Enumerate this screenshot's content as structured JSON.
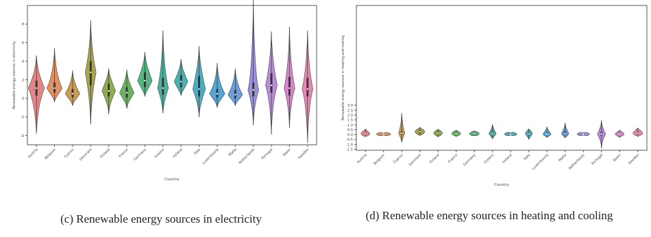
{
  "chart_data": [
    {
      "type": "violin",
      "panel_id": "c",
      "caption": "(c) Renewable energy sources in electricity",
      "xlabel": "Country",
      "ylabel": "Renewable energy sources in electricity",
      "ylim": [
        -5,
        10
      ],
      "yticks": [
        -4,
        -2,
        0,
        2,
        4,
        6,
        8
      ],
      "grid": false,
      "categories": [
        "Austria",
        "Belgium",
        "Cyprus",
        "Denmark",
        "Finland",
        "France",
        "Germany",
        "Greece",
        "Ireland",
        "Italy",
        "Luxembourg",
        "Malta",
        "Netherlands",
        "Portugal",
        "Spain",
        "Sweden"
      ],
      "series": [
        {
          "category": "Austria",
          "color": "#e0787a",
          "min": -3.8,
          "q1": 0.3,
          "median": 1.1,
          "q3": 1.9,
          "max": 4.6,
          "width": 0.9
        },
        {
          "category": "Belgium",
          "color": "#dd8452",
          "min": -0.4,
          "q1": 0.6,
          "median": 1.1,
          "q3": 1.7,
          "max": 5.4,
          "width": 0.85
        },
        {
          "category": "Cyprus",
          "color": "#c7923e",
          "min": -0.8,
          "q1": 0.1,
          "median": 0.5,
          "q3": 1.0,
          "max": 3.0,
          "width": 0.8
        },
        {
          "category": "Denmark",
          "color": "#a09a3a",
          "min": -2.8,
          "q1": 1.4,
          "median": 2.8,
          "q3": 4.0,
          "max": 8.4,
          "width": 0.6
        },
        {
          "category": "Finland",
          "color": "#84a43a",
          "min": -1.7,
          "q1": 0.2,
          "median": 0.8,
          "q3": 1.6,
          "max": 3.2,
          "width": 0.75
        },
        {
          "category": "France",
          "color": "#5aac50",
          "min": -1.1,
          "q1": 0.1,
          "median": 0.6,
          "q3": 1.2,
          "max": 3.1,
          "width": 0.8
        },
        {
          "category": "Germany",
          "color": "#3fae71",
          "min": 0.2,
          "q1": 1.2,
          "median": 1.9,
          "q3": 2.8,
          "max": 5.0,
          "width": 0.8
        },
        {
          "category": "Greece",
          "color": "#3aaa92",
          "min": -1.6,
          "q1": 0.4,
          "median": 1.1,
          "q3": 2.2,
          "max": 7.3,
          "width": 0.6
        },
        {
          "category": "Ireland",
          "color": "#39a8a9",
          "min": 0.3,
          "q1": 1.2,
          "median": 1.8,
          "q3": 2.5,
          "max": 4.2,
          "width": 0.75
        },
        {
          "category": "Italy",
          "color": "#3aa5bd",
          "min": -2.0,
          "q1": 0.2,
          "median": 1.0,
          "q3": 2.4,
          "max": 5.6,
          "width": 0.7
        },
        {
          "category": "Luxembourg",
          "color": "#3f9fd0",
          "min": -1.0,
          "q1": 0.1,
          "median": 0.5,
          "q3": 1.0,
          "max": 3.8,
          "width": 0.85
        },
        {
          "category": "Malta",
          "color": "#5a93d8",
          "min": -0.8,
          "q1": 0.0,
          "median": 0.4,
          "q3": 0.9,
          "max": 3.2,
          "width": 0.8
        },
        {
          "category": "Netherlands",
          "color": "#8d86d6",
          "min": -2.9,
          "q1": 0.2,
          "median": 0.9,
          "q3": 1.7,
          "max": 10.7,
          "width": 0.6
        },
        {
          "category": "Portugal",
          "color": "#b07fd4",
          "min": -3.9,
          "q1": 0.6,
          "median": 1.4,
          "q3": 2.7,
          "max": 7.2,
          "width": 0.65
        },
        {
          "category": "Spain",
          "color": "#d278c4",
          "min": -3.2,
          "q1": 0.3,
          "median": 1.1,
          "q3": 2.3,
          "max": 7.7,
          "width": 0.6
        },
        {
          "category": "Sweden",
          "color": "#e27aa5",
          "min": -4.8,
          "q1": 0.2,
          "median": 1.0,
          "q3": 2.2,
          "max": 7.3,
          "width": 0.6
        }
      ]
    },
    {
      "type": "violin",
      "panel_id": "d",
      "caption": "(d) Renewable energy sources in heating and cooling",
      "xlabel": "Country",
      "ylabel": "Renewable energy sources in heating and cooling",
      "ylim": [
        -1.6,
        13.2
      ],
      "yticks": [
        -1.5,
        -1.0,
        -0.5,
        0.0,
        0.5,
        1.0,
        1.5,
        2.0,
        2.5,
        3.0
      ],
      "ytick_labels": [
        "-1.5",
        "-1.0",
        "-0.5",
        "0.0",
        "0.5",
        "1.0",
        "1.5",
        "2.0",
        "2.5",
        "3.0"
      ],
      "grid": false,
      "categories": [
        "Austria",
        "Belgium",
        "Cyprus",
        "Denmark",
        "Finland",
        "France",
        "Germany",
        "Greece",
        "Ireland",
        "Italy",
        "Luxembourg",
        "Malta",
        "Netherlands",
        "Portugal",
        "Spain",
        "Sweden"
      ],
      "series": [
        {
          "category": "Austria",
          "color": "#e0787a",
          "min": -0.2,
          "q1": 0.0,
          "median": 0.1,
          "q3": 0.2,
          "max": 0.6,
          "width": 0.5
        },
        {
          "category": "Belgium",
          "color": "#dd8452",
          "min": -0.05,
          "q1": 0.0,
          "median": 0.05,
          "q3": 0.1,
          "max": 0.15,
          "width": 0.8
        },
        {
          "category": "Cyprus",
          "color": "#c7923e",
          "min": -0.8,
          "q1": 0.0,
          "median": 0.15,
          "q3": 0.35,
          "max": 2.2,
          "width": 0.35
        },
        {
          "category": "Denmark",
          "color": "#a09a3a",
          "min": -0.1,
          "q1": 0.15,
          "median": 0.3,
          "q3": 0.45,
          "max": 0.75,
          "width": 0.55
        },
        {
          "category": "Finland",
          "color": "#84a43a",
          "min": -0.25,
          "q1": 0.05,
          "median": 0.15,
          "q3": 0.3,
          "max": 0.55,
          "width": 0.5
        },
        {
          "category": "France",
          "color": "#5aac50",
          "min": -0.2,
          "q1": 0.05,
          "median": 0.1,
          "q3": 0.2,
          "max": 0.45,
          "width": 0.5
        },
        {
          "category": "Germany",
          "color": "#3fae71",
          "min": -0.1,
          "q1": 0.0,
          "median": 0.1,
          "q3": 0.15,
          "max": 0.4,
          "width": 0.55
        },
        {
          "category": "Greece",
          "color": "#3aaa92",
          "min": -0.45,
          "q1": 0.0,
          "median": 0.1,
          "q3": 0.25,
          "max": 1.05,
          "width": 0.4
        },
        {
          "category": "Ireland",
          "color": "#39a8a9",
          "min": -0.05,
          "q1": 0.0,
          "median": 0.05,
          "q3": 0.1,
          "max": 0.2,
          "width": 0.7
        },
        {
          "category": "Italy",
          "color": "#3aa5bd",
          "min": -0.5,
          "q1": 0.0,
          "median": 0.1,
          "q3": 0.25,
          "max": 0.6,
          "width": 0.4
        },
        {
          "category": "Luxembourg",
          "color": "#3f9fd0",
          "min": -0.3,
          "q1": 0.0,
          "median": 0.05,
          "q3": 0.15,
          "max": 0.8,
          "width": 0.45
        },
        {
          "category": "Malta",
          "color": "#5a93d8",
          "min": -0.35,
          "q1": 0.0,
          "median": 0.1,
          "q3": 0.3,
          "max": 1.2,
          "width": 0.4
        },
        {
          "category": "Netherlands",
          "color": "#8d86d6",
          "min": -0.05,
          "q1": 0.0,
          "median": 0.05,
          "q3": 0.1,
          "max": 0.2,
          "width": 0.7
        },
        {
          "category": "Portugal",
          "color": "#b07fd4",
          "min": -1.4,
          "q1": -0.1,
          "median": 0.05,
          "q3": 0.25,
          "max": 1.45,
          "width": 0.45
        },
        {
          "category": "Spain",
          "color": "#d278c4",
          "min": -0.3,
          "q1": 0.0,
          "median": 0.05,
          "q3": 0.15,
          "max": 0.45,
          "width": 0.5
        },
        {
          "category": "Sweden",
          "color": "#e27aa5",
          "min": -0.2,
          "q1": 0.05,
          "median": 0.15,
          "q3": 0.3,
          "max": 0.7,
          "width": 0.55
        }
      ]
    }
  ]
}
